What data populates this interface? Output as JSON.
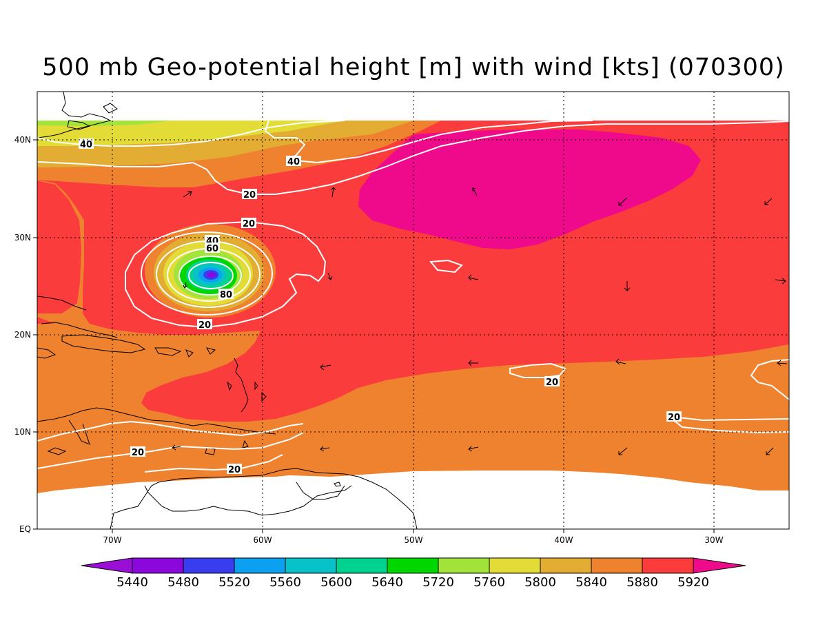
{
  "title": "500 mb Geo-potential height [m] with wind [kts] (070300)",
  "axes": {
    "lon_ticks": [
      "70W",
      "60W",
      "50W",
      "40W",
      "30W"
    ],
    "lat_ticks": [
      "40N",
      "30N",
      "20N",
      "10N",
      "EQ"
    ]
  },
  "contour_labels": [
    "40",
    "40",
    "20",
    "20",
    "40",
    "60",
    "80",
    "20",
    "20",
    "20",
    "20",
    "20"
  ],
  "colorbar": {
    "labels": [
      "5440",
      "5480",
      "5520",
      "5560",
      "5600",
      "5640",
      "5720",
      "5760",
      "5800",
      "5840",
      "5880",
      "5920"
    ],
    "colors": [
      "#9a0fd6",
      "#8a08dc",
      "#3a3cf0",
      "#0ca0f0",
      "#07c3c9",
      "#00d28f",
      "#00d700",
      "#a2e43c",
      "#e3dc37",
      "#e3ac33",
      "#ef822f",
      "#fb3c3c",
      "#ee0a8a"
    ]
  }
}
